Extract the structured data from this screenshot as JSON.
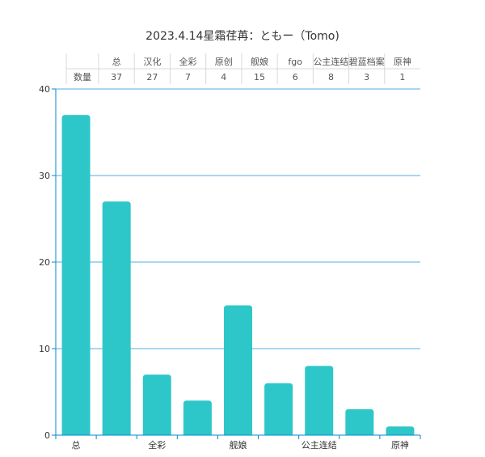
{
  "chart_data": {
    "type": "bar",
    "title": "2023.4.14星霜荏苒：ともー（Tomo)",
    "categories": [
      "总",
      "汉化",
      "全彩",
      "原创",
      "舰娘",
      "fgo",
      "公主连结",
      "碧蓝档案",
      "原神"
    ],
    "series": [
      {
        "name": "数量",
        "values": [
          37,
          27,
          7,
          4,
          15,
          6,
          8,
          3,
          1
        ]
      }
    ],
    "xlabel": "",
    "ylabel": "",
    "ylim": [
      0,
      40
    ],
    "yticks": [
      0,
      10,
      20,
      30,
      40
    ],
    "x_tick_labels_shown": [
      "总",
      "全彩",
      "舰娘",
      "公主连结",
      "原神"
    ],
    "grid": true,
    "data_table": true,
    "bar_color": "#2ec7c9",
    "axis_color": "#008acd"
  }
}
